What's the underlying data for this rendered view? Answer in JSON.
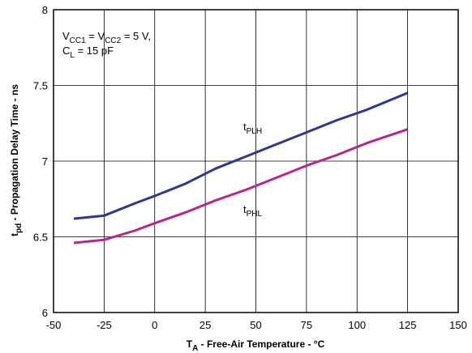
{
  "chart_data": {
    "type": "line",
    "xlabel": {
      "main": "T",
      "sub": "A",
      "rest": " - Free-Air Temperature - °C"
    },
    "ylabel": {
      "main": "t",
      "sub": "pd",
      "rest": " - Propagation Delay Time - ns"
    },
    "xlim": [
      -50,
      150
    ],
    "ylim": [
      6,
      8
    ],
    "x_ticks": [
      "-50",
      "-25",
      "0",
      "25",
      "50",
      "75",
      "100",
      "125",
      "150"
    ],
    "y_ticks": [
      "6",
      "6.5",
      "7",
      "7.5",
      "8"
    ],
    "grid": true,
    "conditions": {
      "line1": {
        "a": "V",
        "a_sub": "CC1",
        "b": " = V",
        "b_sub": "CC2",
        "c": " = 5 V,"
      },
      "line2": {
        "a": "C",
        "a_sub": "L",
        "b": " = 15 pF"
      }
    },
    "series": [
      {
        "name": "tPLH",
        "label": {
          "main": "t",
          "sub": "PLH"
        },
        "color": "#2b3990",
        "x": [
          -40,
          -25,
          -10,
          0,
          15,
          30,
          45,
          60,
          75,
          90,
          105,
          125
        ],
        "y": [
          6.62,
          6.64,
          6.72,
          6.77,
          6.85,
          6.95,
          7.03,
          7.11,
          7.19,
          7.27,
          7.34,
          7.45
        ]
      },
      {
        "name": "tPHL",
        "label": {
          "main": "t",
          "sub": "PHL"
        },
        "color": "#b5278c",
        "x": [
          -40,
          -25,
          -10,
          0,
          15,
          30,
          45,
          60,
          75,
          90,
          105,
          125
        ],
        "y": [
          6.46,
          6.48,
          6.54,
          6.59,
          6.66,
          6.74,
          6.81,
          6.89,
          6.97,
          7.04,
          7.12,
          7.21
        ]
      }
    ]
  }
}
